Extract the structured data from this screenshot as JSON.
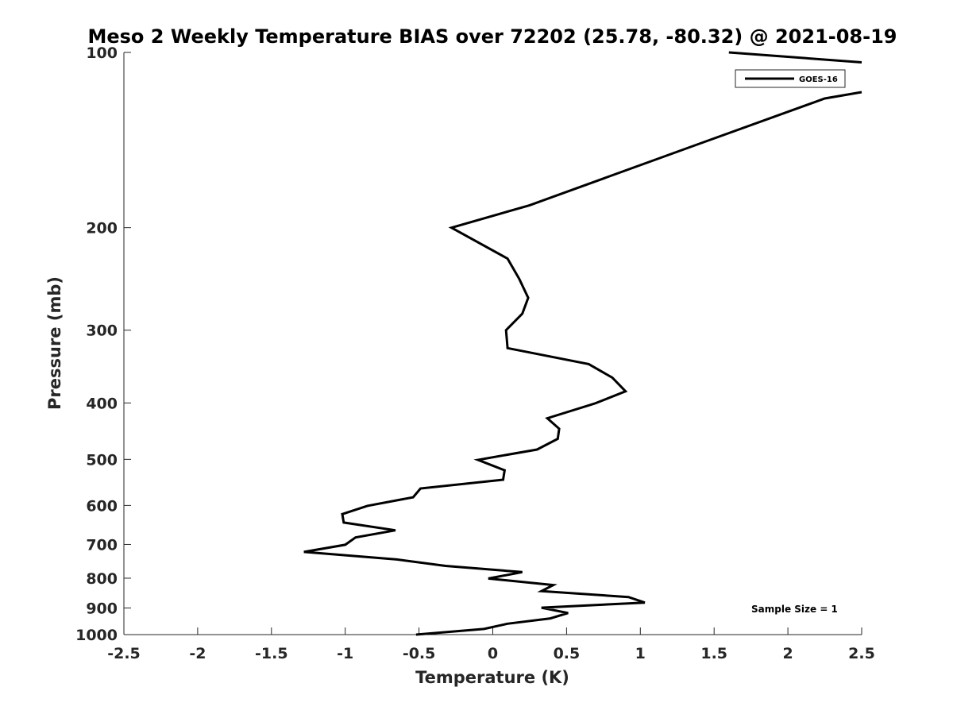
{
  "chart_data": {
    "type": "line",
    "title": "Meso 2 Weekly Temperature BIAS over 72202 (25.78, -80.32) @ 2021-08-19",
    "xlabel": "Temperature (K)",
    "ylabel": "Pressure (mb)",
    "xlim": [
      -2.5,
      2.5
    ],
    "ylim": [
      1000,
      100
    ],
    "yscale": "log",
    "y_reversed": true,
    "grid": false,
    "x_ticks": [
      -2.5,
      -2,
      -1.5,
      -1,
      -0.5,
      0,
      0.5,
      1,
      1.5,
      2,
      2.5
    ],
    "x_tick_labels": [
      "-2.5",
      "-2",
      "-1.5",
      "-1",
      "-0.5",
      "0",
      "0.5",
      "1",
      "1.5",
      "2",
      "2.5"
    ],
    "y_ticks": [
      100,
      200,
      300,
      400,
      500,
      600,
      700,
      800,
      900,
      1000
    ],
    "y_tick_labels": [
      "100",
      "200",
      "300",
      "400",
      "500",
      "600",
      "700",
      "800",
      "900",
      "1000"
    ],
    "legend_position": "top-right",
    "annotation": "Sample Size = 1",
    "series": [
      {
        "name": "GOES-16",
        "color": "#000000",
        "points": [
          [
            1.6,
            100
          ],
          [
            2.5,
            104
          ],
          [
            null,
            null
          ],
          [
            2.5,
            117
          ],
          [
            2.25,
            120
          ],
          [
            1.45,
            142
          ],
          [
            0.25,
            183
          ],
          [
            -0.28,
            200
          ],
          [
            0.1,
            226
          ],
          [
            0.18,
            245
          ],
          [
            0.24,
            264
          ],
          [
            0.2,
            281
          ],
          [
            0.09,
            300
          ],
          [
            0.1,
            322
          ],
          [
            0.65,
            343
          ],
          [
            0.81,
            362
          ],
          [
            0.9,
            382
          ],
          [
            0.69,
            401
          ],
          [
            0.37,
            425
          ],
          [
            0.45,
            443
          ],
          [
            0.44,
            461
          ],
          [
            0.3,
            481
          ],
          [
            -0.1,
            501
          ],
          [
            0.08,
            522
          ],
          [
            0.07,
            542
          ],
          [
            -0.49,
            561
          ],
          [
            -0.54,
            581
          ],
          [
            -0.85,
            601
          ],
          [
            -1.02,
            621
          ],
          [
            -1.01,
            642
          ],
          [
            -0.66,
            662
          ],
          [
            -0.93,
            681
          ],
          [
            -1.0,
            701
          ],
          [
            -1.28,
            721
          ],
          [
            -0.65,
            743
          ],
          [
            -0.32,
            762
          ],
          [
            0.2,
            781
          ],
          [
            -0.03,
            801
          ],
          [
            0.41,
            822
          ],
          [
            0.33,
            842
          ],
          [
            0.92,
            862
          ],
          [
            1.03,
            881
          ],
          [
            0.33,
            899
          ],
          [
            0.51,
            918
          ],
          [
            0.39,
            938
          ],
          [
            0.1,
            958
          ],
          [
            -0.06,
            978
          ],
          [
            -0.52,
            1000
          ]
        ]
      }
    ]
  }
}
